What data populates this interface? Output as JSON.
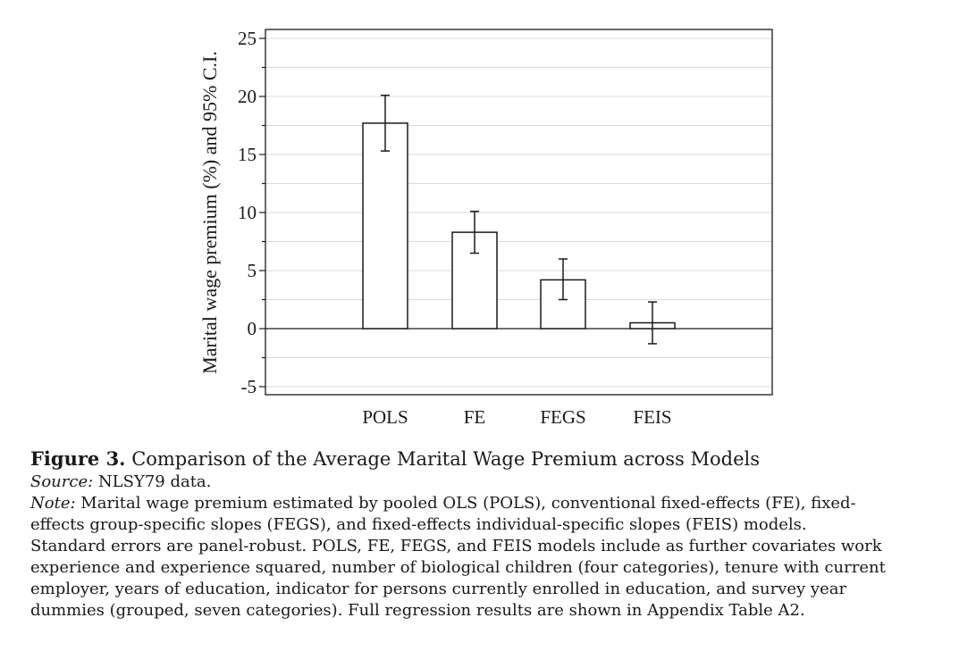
{
  "chart_data": {
    "type": "bar",
    "categories": [
      "POLS",
      "FE",
      "FEGS",
      "FEIS"
    ],
    "values": [
      17.7,
      8.3,
      4.2,
      0.5
    ],
    "ci_lower": [
      15.3,
      6.5,
      2.5,
      -1.3
    ],
    "ci_upper": [
      20.1,
      10.1,
      6.0,
      2.3
    ],
    "title": "",
    "xlabel": "",
    "ylabel": "Marital wage premium (%) and 95% C.I.",
    "ylim": [
      -5,
      25
    ],
    "yticks": [
      -5,
      0,
      5,
      10,
      15,
      20,
      25
    ],
    "ytick_labels": [
      "-5",
      "0",
      "5",
      "10",
      "15",
      "20",
      "25"
    ],
    "grid": true,
    "bar_fill": "#ffffff",
    "bar_stroke": "#1a1a1a",
    "grid_color": "#d9d9d9"
  },
  "caption": {
    "figure_label": "Figure 3.",
    "figure_title": "Comparison of the Average Marital Wage Premium across Models",
    "source_label": "Source:",
    "source_text": "NLSY79 data.",
    "note_label": "Note:",
    "note_lines": [
      "Marital wage premium estimated by pooled OLS (POLS), conventional fixed-effects (FE), fixed-",
      "effects group-specific slopes (FEGS), and fixed-effects individual-specific slopes (FEIS) models.",
      "Standard errors are panel-robust. POLS, FE, FEGS, and FEIS models include as further covariates work",
      "experience and experience squared, number of biological children (four categories), tenure with current",
      "employer, years of education, indicator for persons currently enrolled in education, and survey year",
      "dummies (grouped, seven categories). Full regression results are shown in Appendix Table A2."
    ]
  }
}
